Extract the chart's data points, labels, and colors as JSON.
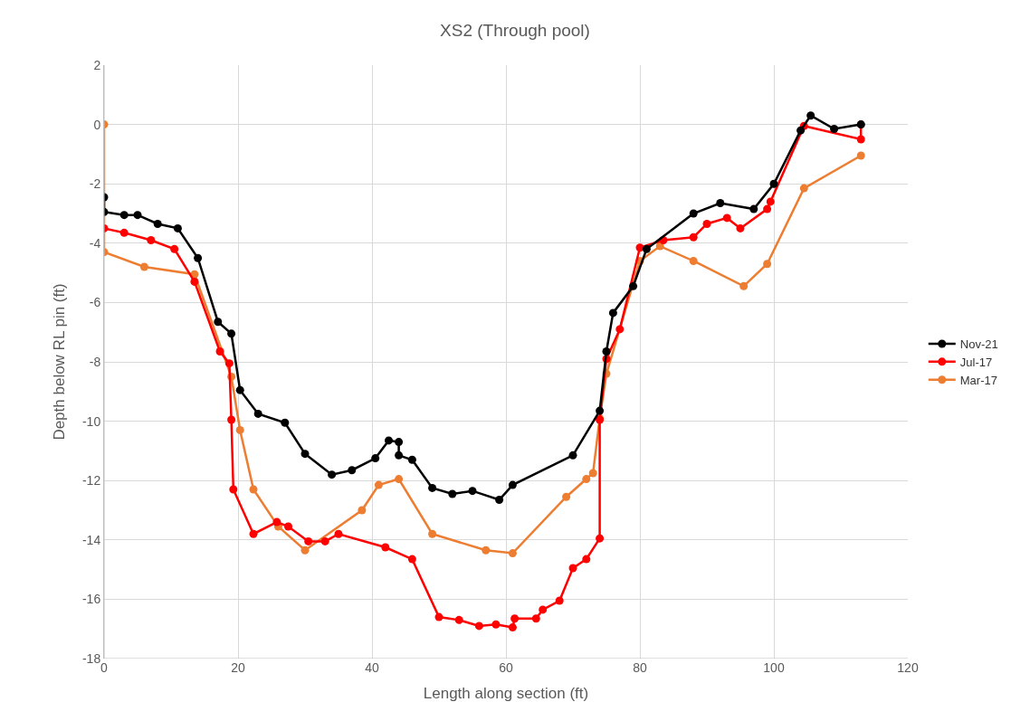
{
  "chart_data": {
    "type": "line",
    "title": "XS2 (Through pool)",
    "xlabel": "Length along section (ft)",
    "ylabel": "Depth below RL pin (ft)",
    "xlim": [
      0,
      120
    ],
    "xticks": [
      0,
      20,
      40,
      60,
      80,
      100,
      120
    ],
    "ylim": [
      -18,
      2
    ],
    "yticks": [
      -18,
      -16,
      -14,
      -12,
      -10,
      -8,
      -6,
      -4,
      -2,
      0,
      2
    ],
    "grid": true,
    "legend": "right",
    "marker": "circle",
    "line_style": "solid",
    "series": [
      {
        "name": "Nov-21",
        "color": "#000000",
        "x": [
          0,
          0,
          3,
          5,
          8,
          11,
          14,
          17,
          19,
          20.3,
          23,
          27,
          30,
          34,
          37,
          40.5,
          42.5,
          44,
          44,
          46,
          49,
          52,
          55,
          59,
          61,
          70,
          74,
          75,
          76,
          79,
          81,
          88,
          92,
          97,
          100,
          104,
          105.5,
          109,
          113
        ],
        "values": [
          -2.45,
          -2.95,
          -3.05,
          -3.05,
          -3.35,
          -3.5,
          -4.5,
          -6.65,
          -7.05,
          -8.95,
          -9.75,
          -10.05,
          -11.1,
          -11.8,
          -11.65,
          -11.25,
          -10.65,
          -10.7,
          -11.15,
          -11.3,
          -12.25,
          -12.45,
          -12.35,
          -12.65,
          -12.15,
          -11.15,
          -9.65,
          -7.65,
          -6.35,
          -5.45,
          -4.2,
          -3,
          -2.65,
          -2.85,
          -2,
          -0.2,
          0.3,
          -0.15,
          0
        ]
      },
      {
        "name": "Jul-17",
        "color": "#ff0000",
        "x": [
          0,
          3,
          7,
          10.5,
          13.5,
          17.3,
          18.7,
          19,
          19.3,
          22.3,
          25.8,
          27.5,
          30.5,
          33,
          35,
          42,
          46,
          50,
          53,
          56,
          58.5,
          61,
          61.3,
          64.5,
          65.5,
          68,
          70,
          72,
          74,
          74,
          75,
          77,
          80,
          83.5,
          88,
          90,
          93,
          95,
          99,
          99.5,
          104.5,
          113,
          113
        ],
        "values": [
          -3.5,
          -3.65,
          -3.9,
          -4.2,
          -5.3,
          -7.65,
          -8.05,
          -9.95,
          -12.3,
          -13.8,
          -13.4,
          -13.55,
          -14.05,
          -14.05,
          -13.8,
          -14.25,
          -14.65,
          -16.6,
          -16.7,
          -16.9,
          -16.85,
          -16.95,
          -16.65,
          -16.65,
          -16.35,
          -16.05,
          -14.95,
          -14.65,
          -13.95,
          -9.95,
          -7.9,
          -6.9,
          -4.15,
          -3.9,
          -3.8,
          -3.35,
          -3.15,
          -3.5,
          -2.85,
          -2.6,
          -0.05,
          -0.5,
          0
        ]
      },
      {
        "name": "Mar-17",
        "color": "#ed7d31",
        "x": [
          0,
          0,
          6,
          13.5,
          19,
          20.3,
          22.3,
          26,
          30,
          38.5,
          41,
          44,
          49,
          57,
          61,
          69,
          72,
          73,
          74,
          75,
          80,
          83,
          88,
          95.5,
          99,
          104.5,
          113
        ],
        "values": [
          0,
          -4.3,
          -4.8,
          -5.05,
          -8.5,
          -10.3,
          -12.3,
          -13.55,
          -14.35,
          -13,
          -12.15,
          -11.95,
          -13.8,
          -14.35,
          -14.45,
          -12.55,
          -11.95,
          -11.75,
          -9.9,
          -8.4,
          -4.6,
          -4.1,
          -4.6,
          -5.45,
          -4.7,
          -2.15,
          -1.05
        ]
      }
    ]
  }
}
